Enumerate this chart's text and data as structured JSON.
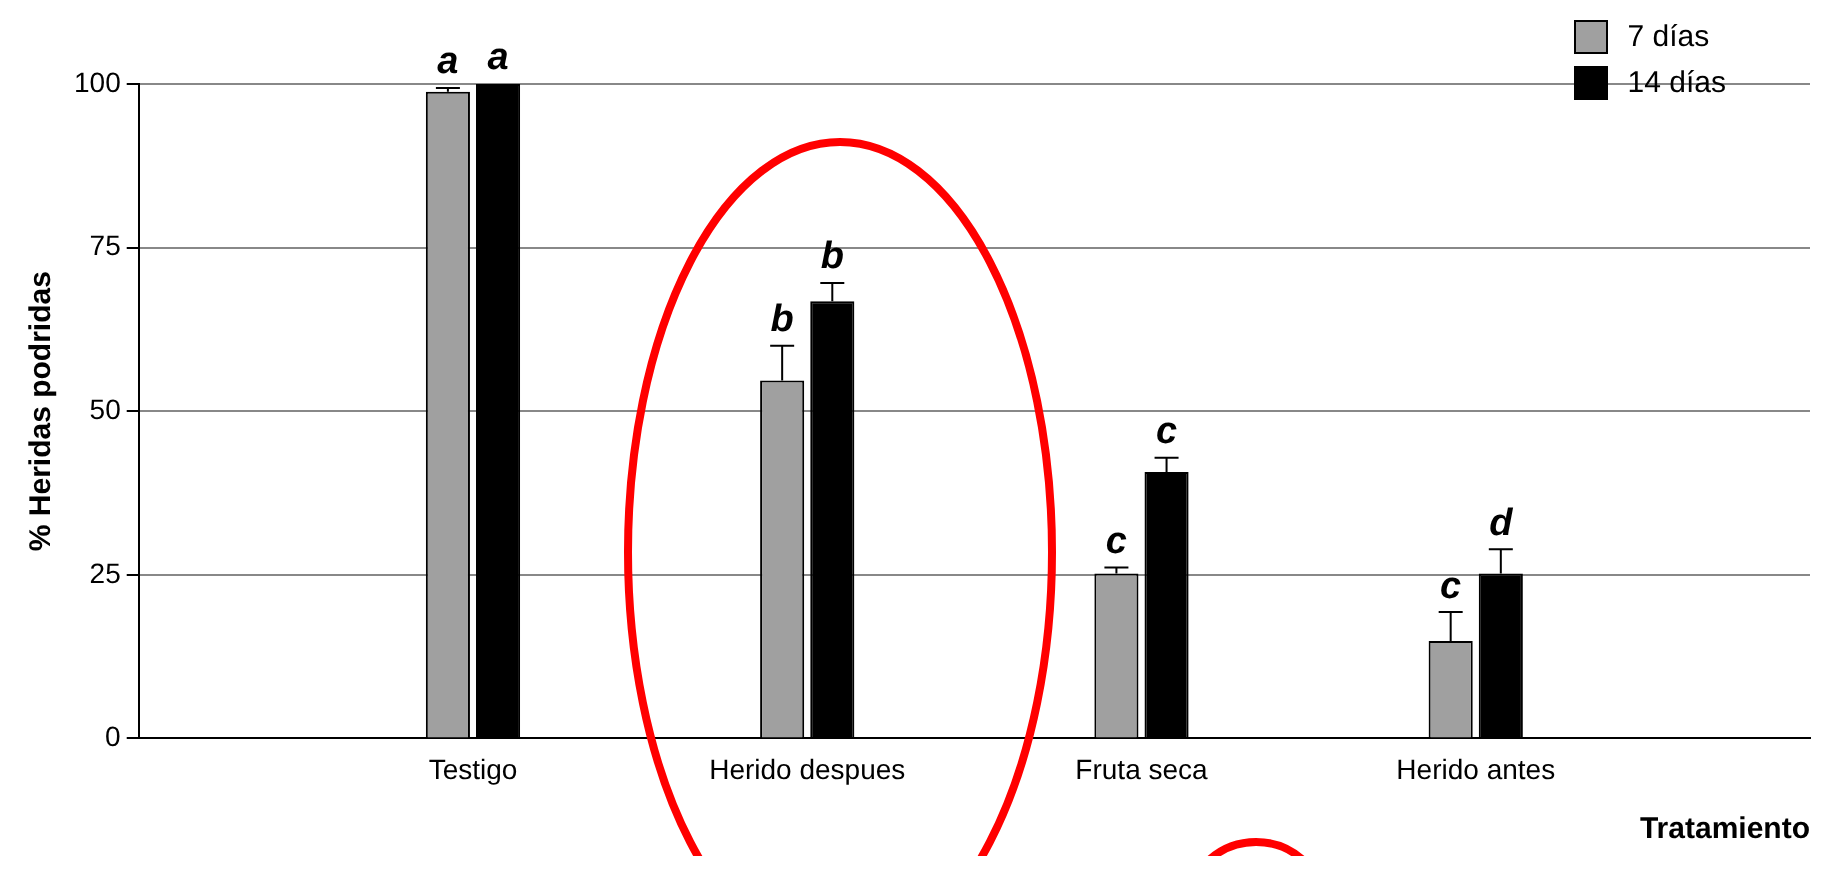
{
  "chart_data": {
    "type": "bar",
    "xlabel": "Tratamiento",
    "ylabel": "% Heridas podridas",
    "categories": [
      null,
      "Testigo",
      "Herido despues",
      "Fruta seca",
      "Herido antes",
      null
    ],
    "series": [
      {
        "name": "7 días",
        "color": "#a0a0a0",
        "values": [
          null,
          98.8,
          54.7,
          25.2,
          14.9,
          null
        ],
        "errors": [
          null,
          0.6,
          5.3,
          0.9,
          4.4,
          null
        ],
        "value_labels": [
          null,
          "a",
          "b",
          "c",
          "c",
          null
        ]
      },
      {
        "name": "14 días",
        "color": "#000000",
        "values": [
          null,
          100,
          66.8,
          40.7,
          25.2,
          null
        ],
        "errors": [
          null,
          null,
          2.8,
          2.2,
          3.7,
          null
        ],
        "value_labels": [
          null,
          "a",
          "b",
          "c",
          "d",
          null
        ]
      }
    ],
    "ylim": [
      0,
      100
    ],
    "yticks": [
      0,
      25,
      50,
      75,
      100
    ],
    "grid": "y",
    "legend": "top right"
  }
}
